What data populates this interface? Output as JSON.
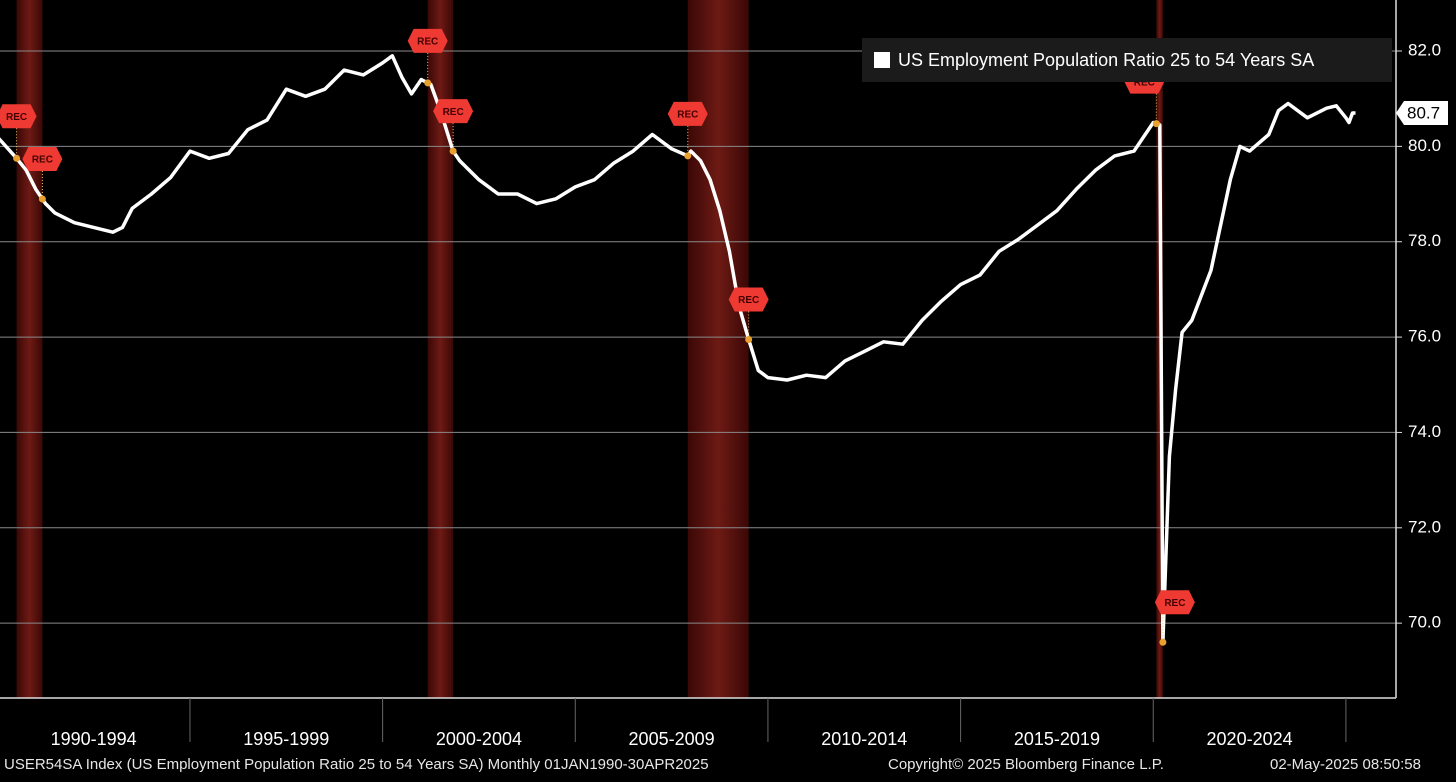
{
  "chart_data": {
    "type": "line",
    "legend_label": "US Employment Population Ratio 25 to 54 Years SA",
    "series": [
      {
        "name": "US Employment Population Ratio 25 to 54 Years SA",
        "color": "#ffffff",
        "x": [
          1990.0,
          1990.5,
          1990.75,
          1991.0,
          1991.25,
          1991.5,
          1992.0,
          1992.5,
          1993.0,
          1993.25,
          1993.5,
          1994.0,
          1994.5,
          1995.0,
          1995.5,
          1996.0,
          1996.5,
          1997.0,
          1997.5,
          1998.0,
          1998.5,
          1999.0,
          1999.5,
          2000.0,
          2000.25,
          2000.5,
          2000.75,
          2001.0,
          2001.25,
          2001.5,
          2001.83,
          2002.0,
          2002.5,
          2003.0,
          2003.5,
          2004.0,
          2004.5,
          2005.0,
          2005.5,
          2006.0,
          2006.5,
          2007.0,
          2007.5,
          2007.92,
          2008.0,
          2008.25,
          2008.5,
          2008.75,
          2009.0,
          2009.25,
          2009.5,
          2009.75,
          2010.0,
          2010.5,
          2011.0,
          2011.5,
          2012.0,
          2012.5,
          2013.0,
          2013.5,
          2014.0,
          2014.5,
          2015.0,
          2015.5,
          2016.0,
          2016.5,
          2017.0,
          2017.5,
          2018.0,
          2018.5,
          2019.0,
          2019.5,
          2020.0,
          2020.17,
          2020.25,
          2020.42,
          2020.58,
          2020.75,
          2021.0,
          2021.5,
          2022.0,
          2022.25,
          2022.5,
          2023.0,
          2023.25,
          2023.5,
          2024.0,
          2024.5,
          2024.75,
          2025.0,
          2025.08,
          2025.17,
          2025.25
        ],
        "values": [
          80.2,
          79.75,
          79.5,
          79.1,
          78.8,
          78.6,
          78.4,
          78.3,
          78.2,
          78.3,
          78.7,
          79.0,
          79.35,
          79.9,
          79.75,
          79.85,
          80.35,
          80.55,
          81.2,
          81.05,
          81.2,
          81.6,
          81.5,
          81.75,
          81.9,
          81.45,
          81.1,
          81.4,
          81.3,
          80.75,
          79.9,
          79.7,
          79.3,
          79.0,
          79.0,
          78.8,
          78.9,
          79.15,
          79.3,
          79.65,
          79.9,
          80.25,
          79.95,
          79.8,
          79.9,
          79.7,
          79.3,
          78.65,
          77.8,
          76.65,
          75.95,
          75.3,
          75.15,
          75.1,
          75.2,
          75.15,
          75.5,
          75.7,
          75.9,
          75.85,
          76.35,
          76.75,
          77.1,
          77.3,
          77.8,
          78.05,
          78.35,
          78.65,
          79.1,
          79.5,
          79.8,
          79.9,
          80.5,
          80.45,
          69.6,
          73.5,
          74.9,
          76.1,
          76.35,
          77.4,
          79.3,
          80.0,
          79.9,
          80.25,
          80.75,
          80.9,
          80.6,
          80.8,
          80.85,
          80.6,
          80.5,
          80.7,
          80.7
        ],
        "last_value": 80.7
      }
    ],
    "recessions": [
      {
        "start": 1990.5,
        "end": 1991.17,
        "start_label": "REC",
        "end_label": "REC"
      },
      {
        "start": 2001.17,
        "end": 2001.83,
        "start_label": "REC",
        "end_label": "REC"
      },
      {
        "start": 2007.92,
        "end": 2009.5,
        "start_label": "REC",
        "end_label": "REC"
      },
      {
        "start": 2020.08,
        "end": 2020.25,
        "start_label": "REC",
        "end_label": "REC"
      }
    ],
    "xlim": [
      1990.07,
      2026.3
    ],
    "xticks": [
      {
        "value": 1990,
        "label": "1990-1994"
      },
      {
        "value": 1995,
        "label": "1995-1999"
      },
      {
        "value": 2000,
        "label": "2000-2004"
      },
      {
        "value": 2005,
        "label": "2005-2009"
      },
      {
        "value": 2010,
        "label": "2010-2014"
      },
      {
        "value": 2015,
        "label": "2015-2019"
      },
      {
        "value": 2020,
        "label": "2020-2024"
      },
      2025
    ],
    "ylim": [
      68.43,
      83.07
    ],
    "yticks": [
      {
        "value": 70,
        "label": "70.0"
      },
      {
        "value": 72,
        "label": "72.0"
      },
      {
        "value": 74,
        "label": "74.0"
      },
      {
        "value": 76,
        "label": "76.0"
      },
      {
        "value": 78,
        "label": "78.0"
      },
      {
        "value": 80,
        "label": "80.0"
      },
      {
        "value": 82,
        "label": "82.0"
      }
    ],
    "grid": true,
    "legend_position": "upper right",
    "footer": {
      "description": "USER54SA Index (US Employment Population Ratio 25 to 54 Years SA)  Monthly 01JAN1990-30APR2025",
      "copyright": "Copyright© 2025 Bloomberg Finance L.P.",
      "timestamp": "02-May-2025 08:50:58"
    }
  }
}
